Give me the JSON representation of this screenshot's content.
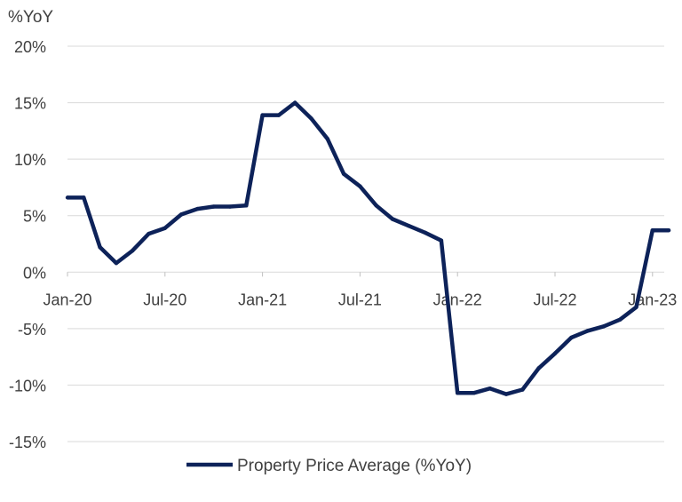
{
  "chart_data": {
    "type": "line",
    "ylabel": "%YoY",
    "ylim": [
      -15,
      20
    ],
    "y_ticks": [
      {
        "value": 20,
        "label": "20%"
      },
      {
        "value": 15,
        "label": "15%"
      },
      {
        "value": 10,
        "label": "10%"
      },
      {
        "value": 5,
        "label": "5%"
      },
      {
        "value": 0,
        "label": "0%"
      },
      {
        "value": -5,
        "label": "-5%"
      },
      {
        "value": -10,
        "label": "-10%"
      },
      {
        "value": -15,
        "label": "-15%"
      }
    ],
    "x_ticks": [
      "Jan-20",
      "Jul-20",
      "Jan-21",
      "Jul-21",
      "Jan-22",
      "Jul-22",
      "Jan-23"
    ],
    "x": [
      "Jan-20",
      "Feb-20",
      "Mar-20",
      "Apr-20",
      "May-20",
      "Jun-20",
      "Jul-20",
      "Aug-20",
      "Sep-20",
      "Oct-20",
      "Nov-20",
      "Dec-20",
      "Jan-21",
      "Feb-21",
      "Mar-21",
      "Apr-21",
      "May-21",
      "Jun-21",
      "Jul-21",
      "Aug-21",
      "Sep-21",
      "Oct-21",
      "Nov-21",
      "Dec-21",
      "Jan-22",
      "Feb-22",
      "Mar-22",
      "Apr-22",
      "May-22",
      "Jun-22",
      "Jul-22",
      "Aug-22",
      "Sep-22",
      "Oct-22",
      "Nov-22",
      "Dec-22",
      "Jan-23",
      "Feb-23"
    ],
    "series": [
      {
        "name": "Property Price Average (%YoY)",
        "color": "#0d2259",
        "values": [
          6.6,
          6.6,
          2.2,
          0.8,
          1.9,
          3.4,
          3.9,
          5.1,
          5.6,
          5.8,
          5.8,
          5.9,
          13.9,
          13.9,
          15.0,
          13.6,
          11.8,
          8.7,
          7.6,
          5.9,
          4.7,
          4.1,
          3.5,
          2.8,
          -10.7,
          -10.7,
          -10.3,
          -10.8,
          -10.4,
          -8.5,
          -7.2,
          -5.8,
          -5.2,
          -4.8,
          -4.2,
          -3.1,
          3.7,
          3.7
        ]
      }
    ],
    "legend": {
      "position": "bottom",
      "label": "Property Price Average (%YoY)"
    },
    "grid": true
  }
}
